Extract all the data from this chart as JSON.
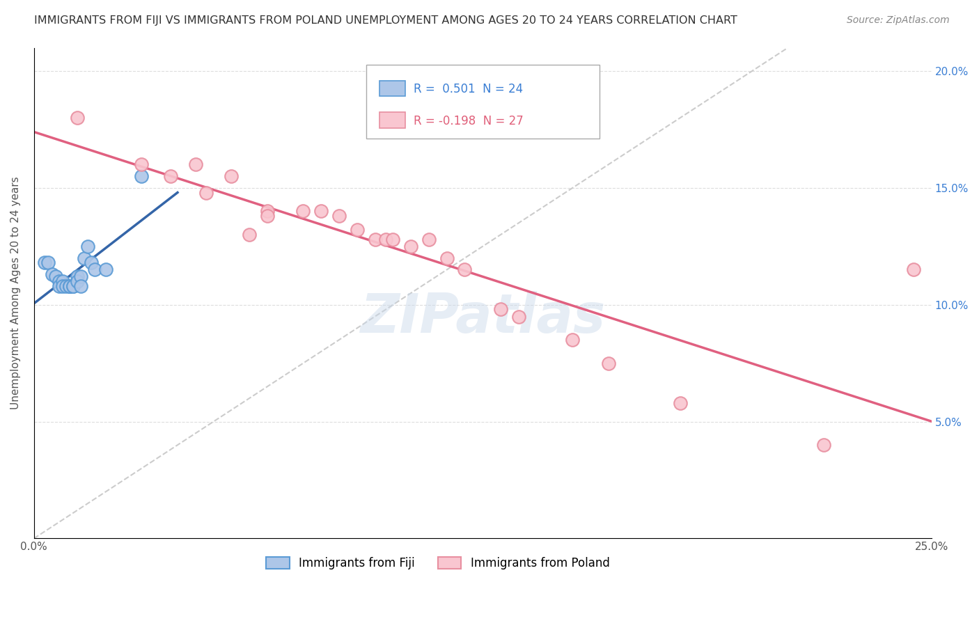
{
  "title": "IMMIGRANTS FROM FIJI VS IMMIGRANTS FROM POLAND UNEMPLOYMENT AMONG AGES 20 TO 24 YEARS CORRELATION CHART",
  "source": "Source: ZipAtlas.com",
  "ylabel": "Unemployment Among Ages 20 to 24 years",
  "xlabel": "",
  "xlim": [
    0.0,
    0.25
  ],
  "ylim": [
    0.0,
    0.21
  ],
  "xticks": [
    0.0,
    0.05,
    0.1,
    0.15,
    0.2,
    0.25
  ],
  "yticks": [
    0.0,
    0.05,
    0.1,
    0.15,
    0.2
  ],
  "xticklabels": [
    "0.0%",
    "",
    "",
    "",
    "",
    "25.0%"
  ],
  "yticklabels": [
    "",
    "",
    "",
    "",
    ""
  ],
  "right_yticklabels": [
    "",
    "5.0%",
    "10.0%",
    "15.0%",
    "20.0%"
  ],
  "fiji_color": "#adc6e8",
  "fiji_edge_color": "#5b9bd5",
  "poland_color": "#f9c6d0",
  "poland_edge_color": "#e88fa0",
  "trend_fiji_color": "#3465a8",
  "trend_poland_color": "#e06080",
  "diag_line_color": "#cccccc",
  "R_fiji": 0.501,
  "N_fiji": 24,
  "R_poland": -0.198,
  "N_poland": 27,
  "fiji_x": [
    0.003,
    0.004,
    0.005,
    0.006,
    0.007,
    0.007,
    0.008,
    0.008,
    0.009,
    0.01,
    0.01,
    0.01,
    0.011,
    0.011,
    0.012,
    0.012,
    0.013,
    0.013,
    0.014,
    0.015,
    0.016,
    0.017,
    0.02,
    0.03
  ],
  "fiji_y": [
    0.118,
    0.118,
    0.113,
    0.112,
    0.11,
    0.108,
    0.11,
    0.108,
    0.108,
    0.108,
    0.108,
    0.108,
    0.108,
    0.108,
    0.112,
    0.11,
    0.112,
    0.108,
    0.12,
    0.125,
    0.118,
    0.115,
    0.115,
    0.155
  ],
  "poland_x": [
    0.012,
    0.03,
    0.038,
    0.045,
    0.048,
    0.055,
    0.06,
    0.065,
    0.065,
    0.075,
    0.08,
    0.085,
    0.09,
    0.095,
    0.098,
    0.1,
    0.105,
    0.11,
    0.115,
    0.12,
    0.13,
    0.135,
    0.15,
    0.16,
    0.18,
    0.22,
    0.245
  ],
  "poland_y": [
    0.18,
    0.16,
    0.155,
    0.16,
    0.148,
    0.155,
    0.13,
    0.14,
    0.138,
    0.14,
    0.14,
    0.138,
    0.132,
    0.128,
    0.128,
    0.128,
    0.125,
    0.128,
    0.12,
    0.115,
    0.098,
    0.095,
    0.085,
    0.075,
    0.058,
    0.04,
    0.115
  ],
  "watermark": "ZIPatlas",
  "legend_fiji_label": "Immigrants from Fiji",
  "legend_poland_label": "Immigrants from Poland",
  "background_color": "#ffffff",
  "grid_color": "#dddddd"
}
